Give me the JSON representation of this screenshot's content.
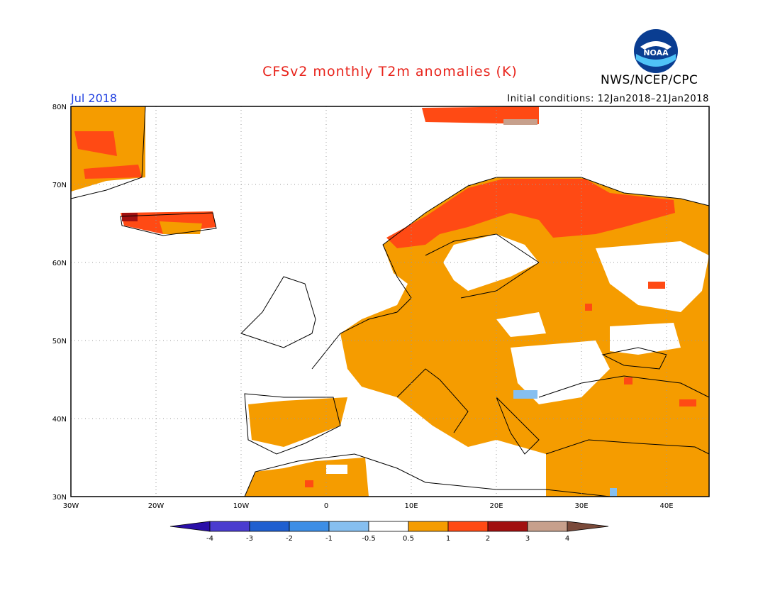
{
  "header": {
    "title": "CFSv2 monthly T2m anomalies (K)",
    "agency": "NWS/NCEP/CPC",
    "month": "Jul 2018",
    "initial_conditions": "Initial conditions: 12Jan2018–21Jan2018"
  },
  "logo": {
    "name": "noaa-logo",
    "text": "NOAA"
  },
  "map": {
    "lon_range": [
      -30,
      45
    ],
    "lat_range": [
      30,
      80
    ],
    "lon_ticks": [
      "30W",
      "20W",
      "10W",
      "0",
      "10E",
      "20E",
      "30E",
      "40E"
    ],
    "lat_ticks": [
      "30N",
      "40N",
      "50N",
      "60N",
      "70N",
      "80N"
    ]
  },
  "colorbar": {
    "labels": [
      "-4",
      "-3",
      "-2",
      "-1",
      "-0.5",
      "0.5",
      "1",
      "2",
      "3",
      "4"
    ],
    "colors": [
      "#2a0fa8",
      "#4a3ccf",
      "#1f5fd0",
      "#3d8ee6",
      "#86bff0",
      "#ffffff",
      "#f59c00",
      "#ff4a14",
      "#a11010",
      "#c7a08c",
      "#7a4a3a"
    ]
  },
  "colors": {
    "anom_05_1": "#f59c00",
    "anom_1_2": "#ff4a14",
    "anom_2_3": "#a11010",
    "anom_3_4": "#c7a08c",
    "neg_05_1": "#86bff0"
  }
}
